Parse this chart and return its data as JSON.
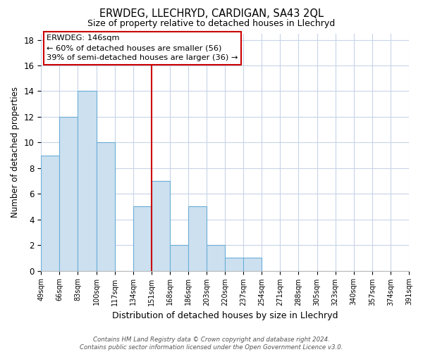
{
  "title": "ERWDEG, LLECHRYD, CARDIGAN, SA43 2QL",
  "subtitle": "Size of property relative to detached houses in Llechryd",
  "xlabel": "Distribution of detached houses by size in Llechryd",
  "ylabel": "Number of detached properties",
  "tick_labels": [
    "49sqm",
    "66sqm",
    "83sqm",
    "100sqm",
    "117sqm",
    "134sqm",
    "151sqm",
    "168sqm",
    "186sqm",
    "203sqm",
    "220sqm",
    "237sqm",
    "254sqm",
    "271sqm",
    "288sqm",
    "305sqm",
    "323sqm",
    "340sqm",
    "357sqm",
    "374sqm",
    "391sqm"
  ],
  "bar_values": [
    9,
    12,
    14,
    10,
    0,
    5,
    7,
    2,
    5,
    2,
    1,
    1,
    0,
    0,
    0,
    0,
    0,
    0,
    0,
    0
  ],
  "bar_color": "#cce0f0",
  "bar_edge_color": "#6baed6",
  "vline_x_index": 6,
  "vline_color": "#cc0000",
  "ylim": [
    0,
    18.5
  ],
  "yticks": [
    0,
    2,
    4,
    6,
    8,
    10,
    12,
    14,
    16,
    18
  ],
  "annotation_title": "ERWDEG: 146sqm",
  "annotation_line1": "← 60% of detached houses are smaller (56)",
  "annotation_line2": "39% of semi-detached houses are larger (36) →",
  "footer_line1": "Contains HM Land Registry data © Crown copyright and database right 2024.",
  "footer_line2": "Contains public sector information licensed under the Open Government Licence v3.0.",
  "grid_color": "#c8d4e8",
  "background_color": "#ffffff"
}
